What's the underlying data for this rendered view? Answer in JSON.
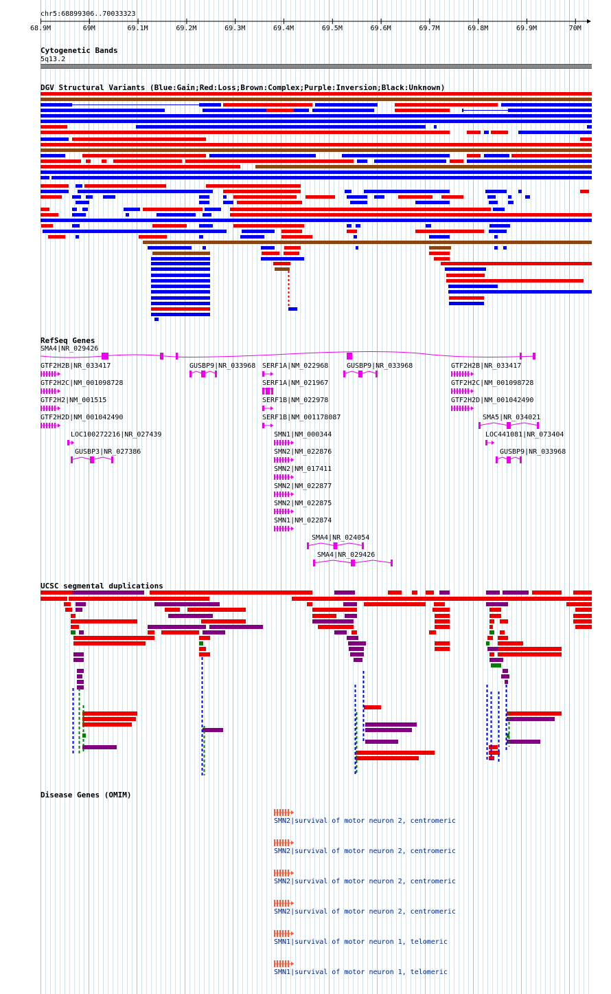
{
  "ruler": {
    "position": "chr5:68899306..70033323",
    "ticks": [
      "68.9M",
      "69M",
      "69.1M",
      "69.2M",
      "69.3M",
      "69.4M",
      "69.5M",
      "69.6M",
      "69.7M",
      "69.8M",
      "69.9M",
      "70M"
    ]
  },
  "cytobands": {
    "title": "Cytogenetic Bands",
    "band": "5q13.2"
  },
  "dgv": {
    "title": "DGV Structural Variants (Blue:Gain;Red:Loss;Brown:Complex;Purple:Inversion;Black:Unknown)",
    "colors": {
      "gain": "#0000ee",
      "loss": "#ee0000",
      "complex": "#8b4513",
      "inversion": "#800080",
      "unknown": "#000000"
    }
  },
  "refseq": {
    "title": "RefSeq Genes",
    "color": "#ee00ee",
    "genes": [
      "SMA4|NR_029426",
      "GTF2H2B|NR_033417",
      "GTF2H2C|NM_001098728",
      "GTF2H2|NM_001515",
      "GTF2H2D|NM_001042490",
      "LOC100272216|NR_027439",
      "GUSBP3|NR_027386",
      "GUSBP9|NR_033968",
      "SERF1A|NM_022968",
      "SERF1A|NM_021967",
      "SERF1B|NM_022978",
      "SERF1B|NM_001178087",
      "SMN1|NM_000344",
      "SMN2|NM_022876",
      "SMN2|NM_017411",
      "SMN2|NM_022877",
      "SMN2|NM_022875",
      "SMN1|NM_022874",
      "SMA4|NR_024054",
      "SMA4|NR_029426",
      "GUSBP9|NR_033968",
      "GTF2H2B|NR_033417",
      "GTF2H2C|NM_001098728",
      "GTF2H2D|NM_001042490",
      "SMA5|NR_034021",
      "LOC441081|NR_073404",
      "GUSBP9|NR_033968"
    ]
  },
  "segdups": {
    "title": "UCSC segmental duplications",
    "colors": {
      "high": "#ee0000",
      "mid": "#800080",
      "low": "#008000",
      "other": "#0000ee"
    }
  },
  "omim": {
    "title": "Disease Genes (OMIM)",
    "color": "#ff5533",
    "entries": [
      "SMN2|survival of motor neuron 2, centromeric",
      "SMN2|survival of motor neuron 2, centromeric",
      "SMN2|survival of motor neuron 2, centromeric",
      "SMN2|survival of motor neuron 2, centromeric",
      "SMN1|survival of motor neuron 1, telomeric",
      "SMN1|survival of motor neuron 1, telomeric"
    ]
  }
}
